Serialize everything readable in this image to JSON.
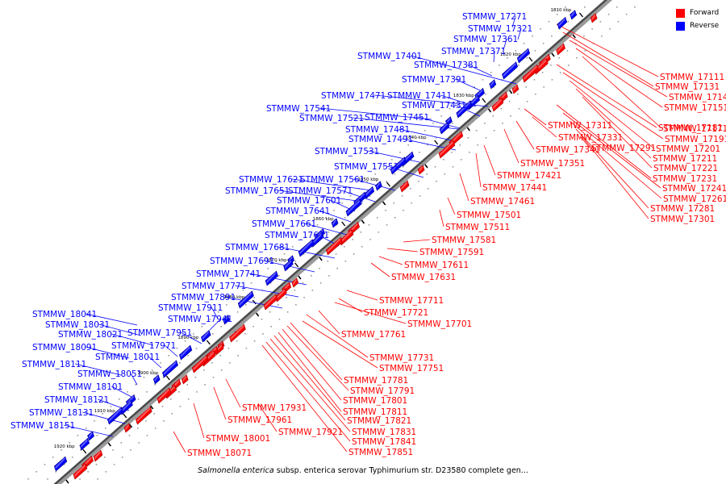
{
  "legend": {
    "forward_label": "Forward",
    "reverse_label": "Reverse",
    "forward_color": "#ff0000",
    "reverse_color": "#0000ff"
  },
  "caption": {
    "italic": "Salmonella enterica",
    "rest": " subsp. enterica serovar Typhimurium str. D23580 complete gen..."
  },
  "ticks": [
    "1810 kbp",
    "1820 kbp",
    "1830 kbp",
    "1840 kbp",
    "1850 kbp",
    "1860 kbp",
    "1870 kbp",
    "1880 kbp",
    "1890 kbp",
    "1900 kbp",
    "1910 kbp",
    "1920 kbp"
  ],
  "reverse_genes": [
    "STMMW_17271",
    "STMMW_17321",
    "STMMW_17361",
    "STMMW_17371",
    "STMMW_17401",
    "STMMW_17381",
    "STMMW_17391",
    "STMMW_17471",
    "STMMW_17411",
    "STMMW_17431",
    "STMMW_17541",
    "STMMW_17521",
    "STMMW_17451",
    "STMMW_17481",
    "STMMW_17491",
    "STMMW_17531",
    "STMMW_17551",
    "STMMW_17621",
    "STMMW_17561",
    "STMMW_17651",
    "STMMW_17571",
    "STMMW_17601",
    "STMMW_17641",
    "STMMW_17661",
    "STMMW_17671",
    "STMMW_17681",
    "STMMW_17691",
    "STMMW_17741",
    "STMMW_17771",
    "STMMW_17891",
    "STMMW_18041",
    "STMMW_17911",
    "STMMW_17941",
    "STMMW_18031",
    "STMMW_18021",
    "STMMW_17951",
    "STMMW_18091",
    "STMMW_17971",
    "STMMW_18011",
    "STMMW_18111",
    "STMMW_18051",
    "STMMW_18101",
    "STMMW_18121",
    "STMMW_18131",
    "STMMW_18151"
  ],
  "forward_genes_right": [
    "STMMW_17111",
    "STMMW_17131",
    "STMMW_17141",
    "STMMW_17151",
    "STMMW_17171",
    "STMMW_17181",
    "STMMW_17191",
    "STMMW_17201",
    "STMMW_17211",
    "STMMW_17221",
    "STMMW_17231",
    "STMMW_17241",
    "STMMW_17261",
    "STMMW_17281",
    "STMMW_17301"
  ],
  "forward_genes_mid": [
    "STMMW_17311",
    "STMMW_17331",
    "STMMW_17291",
    "STMMW_17341",
    "STMMW_17351",
    "STMMW_17421",
    "STMMW_17441",
    "STMMW_17461",
    "STMMW_17501",
    "STMMW_17511",
    "STMMW_17581",
    "STMMW_17591",
    "STMMW_17611",
    "STMMW_17631",
    "STMMW_17711",
    "STMMW_17721",
    "STMMW_17701",
    "STMMW_17761",
    "STMMW_17731",
    "STMMW_17751",
    "STMMW_17781",
    "STMMW_17791",
    "STMMW_17801",
    "STMMW_17811",
    "STMMW_17821",
    "STMMW_17831",
    "STMMW_17841",
    "STMMW_17851",
    "STMMW_17931",
    "STMMW_17961",
    "STMMW_17921",
    "STMMW_18001",
    "STMMW_18071"
  ]
}
